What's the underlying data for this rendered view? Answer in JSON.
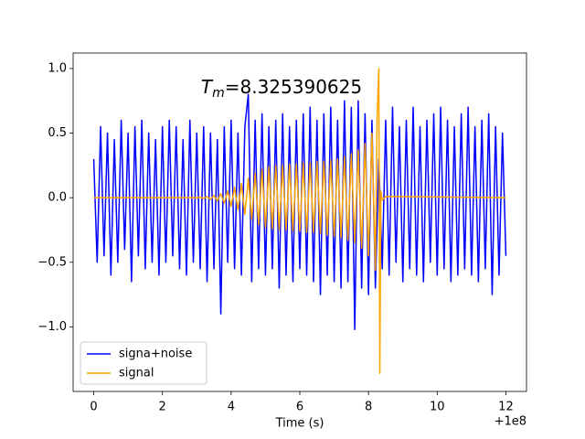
{
  "chart_data": {
    "type": "line",
    "annotation": {
      "base": "T",
      "sub": "m",
      "text": "=8.325390625"
    },
    "x_label": "Time (s)",
    "x_offset_label": "+1e8",
    "xlim": [
      -0.6,
      12.6
    ],
    "ylim": [
      -1.5,
      1.12
    ],
    "xticks": [
      0,
      2,
      4,
      6,
      8,
      10,
      12
    ],
    "yticks": [
      {
        "value": -1.0,
        "label": "−1.0"
      },
      {
        "value": -0.5,
        "label": "−0.5"
      },
      {
        "value": 0.0,
        "label": "0.0"
      },
      {
        "value": 0.5,
        "label": "0.5"
      },
      {
        "value": 1.0,
        "label": "1.0"
      }
    ],
    "grid": false,
    "legend_position": "lower left",
    "series": [
      {
        "name": "signa+noise",
        "color": "#0000ff",
        "x": [
          0.0,
          0.1,
          0.2,
          0.3,
          0.4,
          0.5,
          0.6,
          0.7,
          0.8,
          0.9,
          1.0,
          1.1,
          1.2,
          1.3,
          1.4,
          1.5,
          1.6,
          1.7,
          1.8,
          1.9,
          2.0,
          2.1,
          2.2,
          2.3,
          2.4,
          2.5,
          2.6,
          2.7,
          2.8,
          2.9,
          3.0,
          3.1,
          3.2,
          3.3,
          3.4,
          3.5,
          3.6,
          3.7,
          3.8,
          3.9,
          4.0,
          4.1,
          4.2,
          4.3,
          4.4,
          4.5,
          4.6,
          4.7,
          4.8,
          4.9,
          5.0,
          5.1,
          5.2,
          5.3,
          5.4,
          5.5,
          5.6,
          5.7,
          5.8,
          5.9,
          6.0,
          6.1,
          6.2,
          6.3,
          6.4,
          6.5,
          6.6,
          6.7,
          6.8,
          6.9,
          7.0,
          7.1,
          7.2,
          7.3,
          7.4,
          7.5,
          7.6,
          7.7,
          7.8,
          7.9,
          8.0,
          8.1,
          8.2,
          8.3,
          8.4,
          8.5,
          8.6,
          8.7,
          8.8,
          8.9,
          9.0,
          9.1,
          9.2,
          9.3,
          9.4,
          9.5,
          9.6,
          9.7,
          9.8,
          9.9,
          10.0,
          10.1,
          10.2,
          10.3,
          10.4,
          10.5,
          10.6,
          10.7,
          10.8,
          10.9,
          11.0,
          11.1,
          11.2,
          11.3,
          11.4,
          11.5,
          11.6,
          11.7,
          11.8,
          11.9,
          12.0
        ],
        "values": [
          0.3,
          -0.5,
          0.55,
          -0.45,
          0.5,
          -0.6,
          0.45,
          -0.5,
          0.6,
          -0.4,
          0.5,
          -0.65,
          0.55,
          -0.45,
          0.6,
          -0.55,
          0.5,
          -0.5,
          0.45,
          -0.6,
          0.55,
          -0.5,
          0.6,
          -0.45,
          0.55,
          -0.55,
          0.45,
          -0.6,
          0.6,
          -0.5,
          0.5,
          -0.55,
          0.55,
          -0.65,
          0.5,
          -0.55,
          0.45,
          -0.9,
          0.55,
          -0.5,
          0.6,
          -0.55,
          0.5,
          -0.6,
          0.55,
          0.8,
          -0.65,
          0.6,
          -0.55,
          0.65,
          -0.6,
          0.55,
          -0.55,
          0.6,
          -0.7,
          0.65,
          -0.6,
          0.55,
          -0.65,
          0.6,
          -0.55,
          0.65,
          -0.6,
          0.7,
          -0.65,
          0.6,
          -0.75,
          0.65,
          -0.6,
          0.7,
          -0.65,
          0.6,
          -0.7,
          0.75,
          -0.65,
          0.7,
          -1.02,
          0.75,
          -0.7,
          0.65,
          -0.75,
          0.6,
          -0.7,
          0.3,
          -0.55,
          0.6,
          -0.6,
          0.7,
          -0.5,
          0.55,
          -0.65,
          0.6,
          -0.55,
          0.7,
          -0.6,
          0.55,
          -0.65,
          0.6,
          -0.5,
          0.65,
          -0.6,
          0.7,
          -0.55,
          0.6,
          -0.65,
          0.55,
          -0.6,
          0.65,
          -0.55,
          0.7,
          -0.6,
          0.55,
          -0.65,
          0.6,
          -0.55,
          0.65,
          -0.75,
          0.55,
          -0.6,
          0.5,
          -0.45
        ]
      },
      {
        "name": "signal",
        "color": "#ffa500",
        "x": [
          0.0,
          3.0,
          3.1,
          3.2,
          3.3,
          3.4,
          3.5,
          3.6,
          3.7,
          3.8,
          3.9,
          4.0,
          4.1,
          4.2,
          4.3,
          4.4,
          4.5,
          4.6,
          4.7,
          4.8,
          4.9,
          5.0,
          5.1,
          5.2,
          5.3,
          5.4,
          5.5,
          5.6,
          5.7,
          5.8,
          5.9,
          6.0,
          6.1,
          6.2,
          6.3,
          6.4,
          6.5,
          6.6,
          6.7,
          6.8,
          6.9,
          7.0,
          7.1,
          7.2,
          7.3,
          7.4,
          7.5,
          7.6,
          7.7,
          7.8,
          7.9,
          8.0,
          8.1,
          8.2,
          8.25,
          8.3,
          8.33,
          8.36,
          8.4,
          8.5,
          12.0
        ],
        "values": [
          0,
          0,
          0.003,
          -0.005,
          0.008,
          -0.012,
          0.017,
          -0.024,
          0.032,
          -0.042,
          0.053,
          -0.066,
          0.08,
          -0.095,
          0.11,
          -0.13,
          0.15,
          -0.17,
          0.19,
          -0.21,
          0.22,
          -0.23,
          0.24,
          -0.24,
          0.25,
          -0.25,
          0.25,
          -0.25,
          0.26,
          -0.26,
          0.26,
          -0.26,
          0.27,
          -0.27,
          0.27,
          -0.27,
          0.28,
          -0.28,
          0.28,
          -0.29,
          0.29,
          -0.3,
          0.3,
          -0.31,
          0.32,
          -0.33,
          0.34,
          -0.35,
          0.37,
          -0.39,
          0.42,
          -0.45,
          0.5,
          -0.56,
          0.62,
          1.0,
          -1.36,
          0.05,
          -0.02,
          0.01,
          0
        ]
      }
    ]
  }
}
